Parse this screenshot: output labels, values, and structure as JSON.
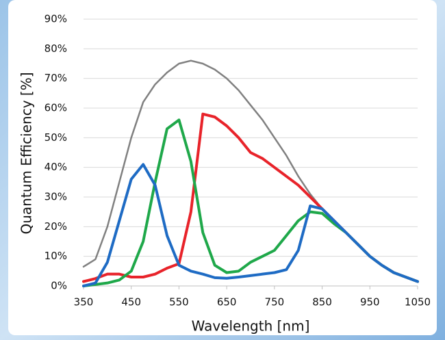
{
  "chart_data": {
    "type": "line",
    "xlabel": "Wavelength [nm]",
    "ylabel": "Quantum Efficiency [%]",
    "x": [
      350,
      375,
      400,
      425,
      450,
      475,
      500,
      525,
      550,
      575,
      600,
      625,
      650,
      675,
      700,
      725,
      750,
      775,
      800,
      825,
      850,
      875,
      900,
      925,
      950,
      975,
      1000,
      1025,
      1050
    ],
    "series": [
      {
        "color": "#808080",
        "values": [
          6.5,
          9,
          20,
          35,
          50,
          62,
          68,
          72,
          75,
          76,
          75,
          73,
          70,
          66,
          61,
          56,
          50,
          44,
          37,
          31,
          26,
          21,
          18,
          14,
          10,
          7,
          4.5,
          3,
          1.5
        ]
      },
      {
        "color": "#e8232a",
        "values": [
          1.5,
          2.5,
          4,
          4,
          3,
          3,
          4,
          6,
          7.5,
          25,
          58,
          57,
          54,
          50,
          45,
          43,
          40,
          37,
          34,
          30,
          26,
          22,
          18,
          14,
          10,
          7,
          4.5,
          3,
          1.5
        ]
      },
      {
        "color": "#1fa84a",
        "values": [
          0,
          0.5,
          1,
          2,
          5,
          15,
          35,
          53,
          56,
          42,
          18,
          7,
          4.5,
          5,
          8,
          10,
          12,
          17,
          22,
          25,
          24.5,
          21,
          18,
          14,
          10,
          7,
          4.5,
          3,
          1.5
        ]
      },
      {
        "color": "#1e6bc4",
        "values": [
          0,
          1,
          8,
          22,
          36,
          41,
          34,
          17,
          7,
          5,
          4,
          2.8,
          2.6,
          3,
          3.5,
          4,
          4.5,
          5.5,
          12,
          27,
          26,
          22,
          18,
          14,
          10,
          7,
          4.5,
          3,
          1.5
        ]
      }
    ],
    "xlim": [
      350,
      1050
    ],
    "xticks": [
      350,
      450,
      550,
      650,
      750,
      850,
      950,
      1050
    ],
    "ylim": [
      0,
      90
    ],
    "yticks": [
      {
        "value": 0,
        "label": "0%"
      },
      {
        "value": 10,
        "label": "10%"
      },
      {
        "value": 20,
        "label": "20%"
      },
      {
        "value": 30,
        "label": "30%"
      },
      {
        "value": 40,
        "label": "40%"
      },
      {
        "value": 50,
        "label": "50%"
      },
      {
        "value": 60,
        "label": "60%"
      },
      {
        "value": 70,
        "label": "70%"
      },
      {
        "value": 80,
        "label": "80%"
      },
      {
        "value": 90,
        "label": "90%"
      }
    ],
    "grid": true
  }
}
